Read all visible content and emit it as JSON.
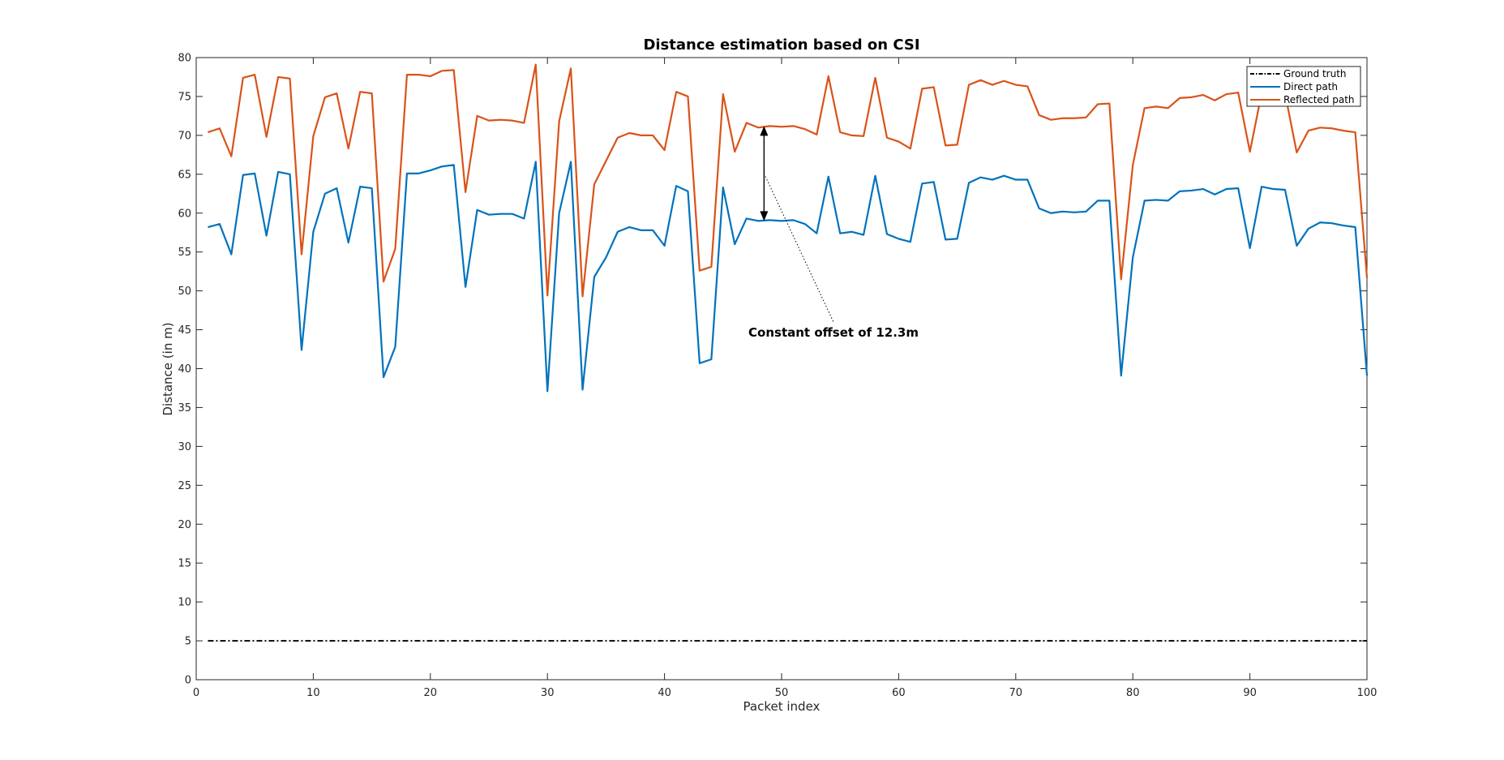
{
  "chart_data": {
    "type": "line",
    "title": "Distance estimation based on CSI",
    "xlabel": "Packet index",
    "ylabel": "Distance (in m)",
    "xlim": [
      0,
      100
    ],
    "ylim": [
      0,
      80
    ],
    "xticks": [
      0,
      10,
      20,
      30,
      40,
      50,
      60,
      70,
      80,
      90,
      100
    ],
    "yticks": [
      0,
      5,
      10,
      15,
      20,
      25,
      30,
      35,
      40,
      45,
      50,
      55,
      60,
      65,
      70,
      75,
      80
    ],
    "grid": false,
    "legend_position": "top-right",
    "x": [
      1,
      2,
      3,
      4,
      5,
      6,
      7,
      8,
      9,
      10,
      11,
      12,
      13,
      14,
      15,
      16,
      17,
      18,
      19,
      20,
      21,
      22,
      23,
      24,
      25,
      26,
      27,
      28,
      29,
      30,
      31,
      32,
      33,
      34,
      35,
      36,
      37,
      38,
      39,
      40,
      41,
      42,
      43,
      44,
      45,
      46,
      47,
      48,
      49,
      50,
      51,
      52,
      53,
      54,
      55,
      56,
      57,
      58,
      59,
      60,
      61,
      62,
      63,
      64,
      65,
      66,
      67,
      68,
      69,
      70,
      71,
      72,
      73,
      74,
      75,
      76,
      77,
      78,
      79,
      80,
      81,
      82,
      83,
      84,
      85,
      86,
      87,
      88,
      89,
      90,
      91,
      92,
      93,
      94,
      95,
      96,
      97,
      98,
      99,
      100
    ],
    "series": [
      {
        "name": "Ground truth",
        "color": "#000000",
        "style": "dash-dot",
        "values": [
          5,
          5,
          5,
          5,
          5,
          5,
          5,
          5,
          5,
          5,
          5,
          5,
          5,
          5,
          5,
          5,
          5,
          5,
          5,
          5,
          5,
          5,
          5,
          5,
          5,
          5,
          5,
          5,
          5,
          5,
          5,
          5,
          5,
          5,
          5,
          5,
          5,
          5,
          5,
          5,
          5,
          5,
          5,
          5,
          5,
          5,
          5,
          5,
          5,
          5,
          5,
          5,
          5,
          5,
          5,
          5,
          5,
          5,
          5,
          5,
          5,
          5,
          5,
          5,
          5,
          5,
          5,
          5,
          5,
          5,
          5,
          5,
          5,
          5,
          5,
          5,
          5,
          5,
          5,
          5,
          5,
          5,
          5,
          5,
          5,
          5,
          5,
          5,
          5,
          5,
          5,
          5,
          5,
          5,
          5,
          5,
          5,
          5,
          5,
          5
        ]
      },
      {
        "name": "Direct path",
        "color": "#0072BD",
        "style": "solid",
        "values": [
          58.2,
          58.6,
          54.7,
          64.9,
          65.1,
          57.1,
          65.3,
          65.0,
          42.4,
          57.6,
          62.5,
          63.2,
          56.2,
          63.4,
          63.2,
          38.9,
          42.8,
          65.1,
          65.1,
          65.5,
          66.0,
          66.2,
          50.5,
          60.4,
          59.8,
          59.9,
          59.9,
          59.3,
          66.6,
          37.1,
          60.0,
          66.6,
          37.3,
          51.8,
          54.3,
          57.6,
          58.2,
          57.8,
          57.8,
          55.8,
          63.5,
          62.8,
          40.7,
          41.2,
          63.3,
          56.0,
          59.3,
          59.0,
          59.1,
          59.0,
          59.1,
          58.6,
          57.4,
          64.7,
          57.4,
          57.6,
          57.2,
          64.8,
          57.3,
          56.7,
          56.3,
          63.8,
          64.0,
          56.6,
          56.7,
          63.9,
          64.6,
          64.3,
          64.8,
          64.3,
          64.3,
          60.6,
          60.0,
          60.2,
          60.1,
          60.2,
          61.6,
          61.6,
          39.1,
          54.3,
          61.6,
          61.7,
          61.6,
          62.8,
          62.9,
          63.1,
          62.4,
          63.1,
          63.2,
          55.5,
          63.4,
          63.1,
          63.0,
          55.8,
          58.0,
          58.8,
          58.7,
          58.4,
          58.2,
          39.1
        ]
      },
      {
        "name": "Reflected path",
        "color": "#D95319",
        "style": "solid",
        "values": [
          70.4,
          70.9,
          67.3,
          77.4,
          77.8,
          69.8,
          77.5,
          77.3,
          54.7,
          69.9,
          74.9,
          75.4,
          68.3,
          75.6,
          75.4,
          51.2,
          55.4,
          77.8,
          77.8,
          77.6,
          78.3,
          78.4,
          62.7,
          72.5,
          71.9,
          72.0,
          71.9,
          71.6,
          79.1,
          49.4,
          71.8,
          78.6,
          49.3,
          63.7,
          66.7,
          69.7,
          70.3,
          70.0,
          70.0,
          68.1,
          75.6,
          75.0,
          52.6,
          53.1,
          75.3,
          67.9,
          71.6,
          71.0,
          71.2,
          71.1,
          71.2,
          70.8,
          70.1,
          77.6,
          70.4,
          70.0,
          69.9,
          77.4,
          69.7,
          69.2,
          68.3,
          76.0,
          76.2,
          68.7,
          68.8,
          76.5,
          77.1,
          76.5,
          77.0,
          76.5,
          76.3,
          72.6,
          72.0,
          72.2,
          72.2,
          72.3,
          74.0,
          74.1,
          51.5,
          66.2,
          73.5,
          73.7,
          73.5,
          74.8,
          74.9,
          75.2,
          74.5,
          75.3,
          75.5,
          67.9,
          75.4,
          75.4,
          75.4,
          67.8,
          70.6,
          71.0,
          70.9,
          70.6,
          70.4,
          51.7
        ]
      }
    ],
    "annotation": {
      "text": "Constant offset of 12.3m",
      "arrow_x": 48.5,
      "arrow_y_from": 59.0,
      "arrow_y_to": 71.2
    }
  }
}
